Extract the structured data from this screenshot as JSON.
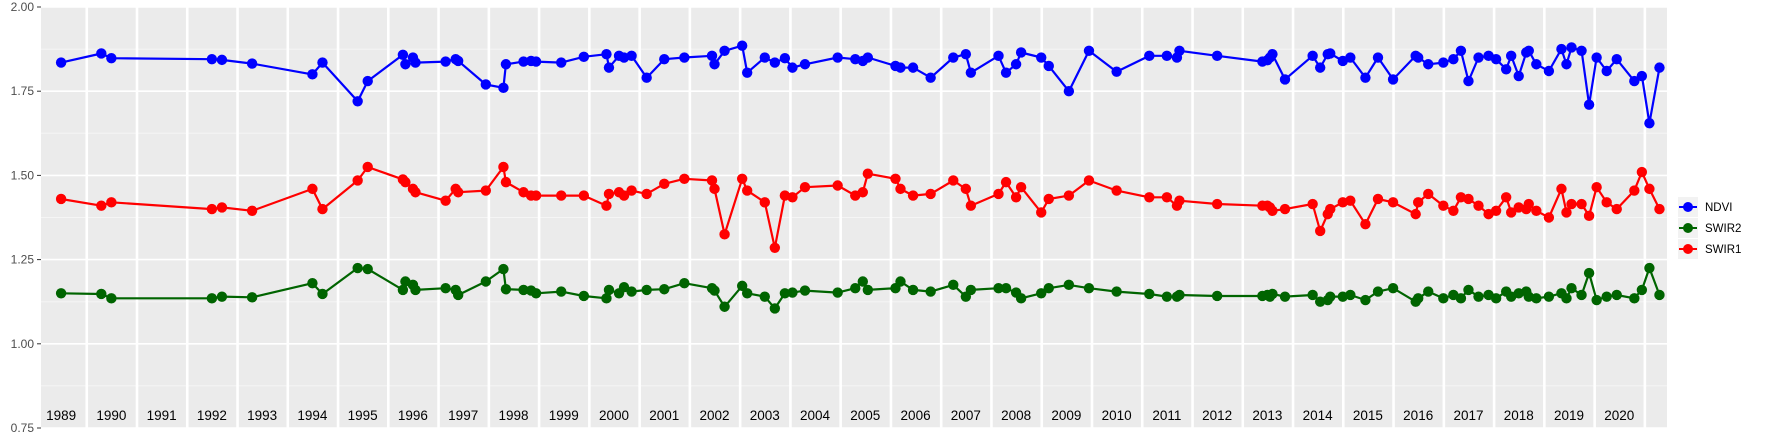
{
  "chart_data": {
    "type": "line",
    "title": "",
    "xlabel": "",
    "ylabel": "",
    "ylim": [
      0.75,
      2.0
    ],
    "xlim": [
      1988.6,
      2020.95
    ],
    "y_ticks": [
      "0.75",
      "1.00",
      "1.25",
      "1.50",
      "1.75",
      "2.00"
    ],
    "y_tick_values": [
      0.75,
      1.0,
      1.25,
      1.5,
      1.75,
      2.0
    ],
    "year_labels": [
      "1989",
      "1990",
      "1991",
      "1992",
      "1993",
      "1994",
      "1995",
      "1996",
      "1997",
      "1998",
      "1999",
      "2000",
      "2001",
      "2002",
      "2003",
      "2004",
      "2005",
      "2006",
      "2007",
      "2008",
      "2009",
      "2010",
      "2011",
      "2012",
      "2013",
      "2014",
      "2015",
      "2016",
      "2017",
      "2018",
      "2019",
      "2020"
    ],
    "grid": true,
    "legend_position": "right",
    "background": "#ebebeb",
    "series": [
      {
        "name": "NDVI",
        "color": "#0000ff",
        "x": [
          1989.0,
          1989.8,
          1990.0,
          1992.0,
          1992.2,
          1992.8,
          1994.0,
          1994.2,
          1994.9,
          1995.1,
          1995.8,
          1995.85,
          1996.0,
          1996.05,
          1996.65,
          1996.85,
          1996.9,
          1997.45,
          1997.8,
          1997.85,
          1998.2,
          1998.35,
          1998.45,
          1998.95,
          1999.4,
          1999.85,
          1999.9,
          2000.1,
          2000.2,
          2000.35,
          2000.65,
          2001.0,
          2001.4,
          2001.95,
          2002.0,
          2002.2,
          2002.55,
          2002.65,
          2003.0,
          2003.2,
          2003.4,
          2003.55,
          2003.8,
          2004.45,
          2004.8,
          2004.95,
          2005.05,
          2005.6,
          2005.7,
          2005.95,
          2006.3,
          2006.75,
          2007.0,
          2007.1,
          2007.65,
          2007.8,
          2008.0,
          2008.1,
          2008.5,
          2008.65,
          2009.05,
          2009.45,
          2010.0,
          2010.65,
          2011.0,
          2011.2,
          2011.25,
          2012.0,
          2012.9,
          2013.0,
          2013.05,
          2013.1,
          2013.35,
          2013.9,
          2014.05,
          2014.2,
          2014.25,
          2014.5,
          2014.65,
          2014.95,
          2015.2,
          2015.5,
          2015.95,
          2016.0,
          2016.2,
          2016.5,
          2016.7,
          2016.85,
          2017.0,
          2017.2,
          2017.4,
          2017.55,
          2017.75,
          2017.85,
          2018.0,
          2018.15,
          2018.2,
          2018.35,
          2018.6,
          2018.85,
          2018.95,
          2019.05,
          2019.25,
          2019.4,
          2019.55,
          2019.75,
          2019.95,
          2020.3,
          2020.45,
          2020.6,
          2020.8
        ],
        "y": [
          1.835,
          1.862,
          1.848,
          1.845,
          1.843,
          1.832,
          1.8,
          1.835,
          1.72,
          1.78,
          1.858,
          1.83,
          1.85,
          1.835,
          1.838,
          1.845,
          1.84,
          1.77,
          1.76,
          1.83,
          1.838,
          1.84,
          1.838,
          1.835,
          1.852,
          1.86,
          1.82,
          1.855,
          1.85,
          1.855,
          1.79,
          1.845,
          1.85,
          1.855,
          1.83,
          1.87,
          1.885,
          1.805,
          1.85,
          1.835,
          1.848,
          1.82,
          1.83,
          1.85,
          1.845,
          1.84,
          1.85,
          1.825,
          1.82,
          1.82,
          1.79,
          1.85,
          1.86,
          1.805,
          1.855,
          1.805,
          1.83,
          1.865,
          1.85,
          1.825,
          1.75,
          1.87,
          1.808,
          1.855,
          1.855,
          1.85,
          1.87,
          1.855,
          1.838,
          1.842,
          1.85,
          1.86,
          1.785,
          1.855,
          1.82,
          1.86,
          1.862,
          1.84,
          1.85,
          1.79,
          1.85,
          1.785,
          1.855,
          1.85,
          1.83,
          1.835,
          1.845,
          1.87,
          1.78,
          1.85,
          1.855,
          1.845,
          1.815,
          1.855,
          1.795,
          1.865,
          1.87,
          1.83,
          1.81,
          1.875,
          1.83,
          1.88,
          1.87,
          1.71,
          1.85,
          1.81,
          1.845,
          1.78,
          1.795,
          1.655,
          1.82
        ]
      },
      {
        "name": "SWIR2",
        "color": "#006400",
        "x": [
          1989.0,
          1989.8,
          1990.0,
          1992.0,
          1992.2,
          1992.8,
          1994.0,
          1994.2,
          1994.9,
          1995.1,
          1995.8,
          1995.85,
          1996.0,
          1996.05,
          1996.65,
          1996.85,
          1996.9,
          1997.45,
          1997.8,
          1997.85,
          1998.2,
          1998.35,
          1998.45,
          1998.95,
          1999.4,
          1999.85,
          1999.9,
          2000.1,
          2000.2,
          2000.35,
          2000.65,
          2001.0,
          2001.4,
          2001.95,
          2002.0,
          2002.2,
          2002.55,
          2002.65,
          2003.0,
          2003.2,
          2003.4,
          2003.55,
          2003.8,
          2004.45,
          2004.8,
          2004.95,
          2005.05,
          2005.6,
          2005.7,
          2005.95,
          2006.3,
          2006.75,
          2007.0,
          2007.1,
          2007.65,
          2007.8,
          2008.0,
          2008.1,
          2008.5,
          2008.65,
          2009.05,
          2009.45,
          2010.0,
          2010.65,
          2011.0,
          2011.2,
          2011.25,
          2012.0,
          2012.9,
          2013.0,
          2013.05,
          2013.1,
          2013.35,
          2013.9,
          2014.05,
          2014.2,
          2014.25,
          2014.5,
          2014.65,
          2014.95,
          2015.2,
          2015.5,
          2015.95,
          2016.0,
          2016.2,
          2016.5,
          2016.7,
          2016.85,
          2017.0,
          2017.2,
          2017.4,
          2017.55,
          2017.75,
          2017.85,
          2018.0,
          2018.15,
          2018.2,
          2018.35,
          2018.6,
          2018.85,
          2018.95,
          2019.05,
          2019.25,
          2019.4,
          2019.55,
          2019.75,
          2019.95,
          2020.3,
          2020.45,
          2020.6,
          2020.8
        ],
        "y": [
          1.15,
          1.148,
          1.135,
          1.135,
          1.14,
          1.138,
          1.18,
          1.148,
          1.225,
          1.222,
          1.16,
          1.185,
          1.175,
          1.16,
          1.165,
          1.16,
          1.145,
          1.185,
          1.222,
          1.162,
          1.16,
          1.158,
          1.15,
          1.155,
          1.142,
          1.135,
          1.16,
          1.15,
          1.168,
          1.155,
          1.16,
          1.162,
          1.18,
          1.165,
          1.158,
          1.11,
          1.172,
          1.15,
          1.14,
          1.105,
          1.15,
          1.152,
          1.158,
          1.152,
          1.165,
          1.185,
          1.16,
          1.165,
          1.185,
          1.16,
          1.155,
          1.175,
          1.14,
          1.16,
          1.165,
          1.165,
          1.152,
          1.135,
          1.15,
          1.165,
          1.175,
          1.165,
          1.155,
          1.148,
          1.14,
          1.14,
          1.145,
          1.142,
          1.142,
          1.145,
          1.14,
          1.148,
          1.14,
          1.145,
          1.125,
          1.13,
          1.14,
          1.14,
          1.145,
          1.13,
          1.155,
          1.165,
          1.125,
          1.135,
          1.155,
          1.135,
          1.145,
          1.135,
          1.16,
          1.14,
          1.145,
          1.135,
          1.155,
          1.14,
          1.15,
          1.155,
          1.14,
          1.135,
          1.14,
          1.15,
          1.135,
          1.165,
          1.145,
          1.21,
          1.13,
          1.14,
          1.145,
          1.135,
          1.16,
          1.225,
          1.145
        ]
      },
      {
        "name": "SWIR1",
        "color": "#ff0000",
        "x": [
          1989.0,
          1989.8,
          1990.0,
          1992.0,
          1992.2,
          1992.8,
          1994.0,
          1994.2,
          1994.9,
          1995.1,
          1995.8,
          1995.85,
          1996.0,
          1996.05,
          1996.65,
          1996.85,
          1996.9,
          1997.45,
          1997.8,
          1997.85,
          1998.2,
          1998.35,
          1998.45,
          1998.95,
          1999.4,
          1999.85,
          1999.9,
          2000.1,
          2000.2,
          2000.35,
          2000.65,
          2001.0,
          2001.4,
          2001.95,
          2002.0,
          2002.2,
          2002.55,
          2002.65,
          2003.0,
          2003.2,
          2003.4,
          2003.55,
          2003.8,
          2004.45,
          2004.8,
          2004.95,
          2005.05,
          2005.6,
          2005.7,
          2005.95,
          2006.3,
          2006.75,
          2007.0,
          2007.1,
          2007.65,
          2007.8,
          2008.0,
          2008.1,
          2008.5,
          2008.65,
          2009.05,
          2009.45,
          2010.0,
          2010.65,
          2011.0,
          2011.2,
          2011.25,
          2012.0,
          2012.9,
          2013.0,
          2013.05,
          2013.1,
          2013.35,
          2013.9,
          2014.05,
          2014.2,
          2014.25,
          2014.5,
          2014.65,
          2014.95,
          2015.2,
          2015.5,
          2015.95,
          2016.0,
          2016.2,
          2016.5,
          2016.7,
          2016.85,
          2017.0,
          2017.2,
          2017.4,
          2017.55,
          2017.75,
          2017.85,
          2018.0,
          2018.15,
          2018.2,
          2018.35,
          2018.6,
          2018.85,
          2018.95,
          2019.05,
          2019.25,
          2019.4,
          2019.55,
          2019.75,
          2019.95,
          2020.3,
          2020.45,
          2020.6,
          2020.8
        ],
        "y": [
          1.43,
          1.41,
          1.42,
          1.4,
          1.405,
          1.395,
          1.46,
          1.4,
          1.485,
          1.525,
          1.488,
          1.48,
          1.46,
          1.45,
          1.425,
          1.46,
          1.45,
          1.455,
          1.525,
          1.48,
          1.45,
          1.44,
          1.44,
          1.44,
          1.44,
          1.41,
          1.445,
          1.45,
          1.44,
          1.455,
          1.445,
          1.475,
          1.49,
          1.485,
          1.46,
          1.325,
          1.49,
          1.455,
          1.42,
          1.285,
          1.44,
          1.435,
          1.465,
          1.47,
          1.44,
          1.45,
          1.505,
          1.49,
          1.46,
          1.44,
          1.445,
          1.485,
          1.46,
          1.41,
          1.445,
          1.48,
          1.435,
          1.465,
          1.39,
          1.43,
          1.44,
          1.485,
          1.455,
          1.435,
          1.435,
          1.41,
          1.425,
          1.415,
          1.41,
          1.41,
          1.405,
          1.395,
          1.4,
          1.415,
          1.335,
          1.385,
          1.4,
          1.42,
          1.425,
          1.355,
          1.43,
          1.42,
          1.385,
          1.42,
          1.445,
          1.41,
          1.395,
          1.435,
          1.43,
          1.41,
          1.385,
          1.395,
          1.435,
          1.39,
          1.405,
          1.4,
          1.415,
          1.395,
          1.375,
          1.46,
          1.39,
          1.415,
          1.415,
          1.38,
          1.465,
          1.42,
          1.4,
          1.455,
          1.51,
          1.46,
          1.4
        ]
      }
    ]
  }
}
